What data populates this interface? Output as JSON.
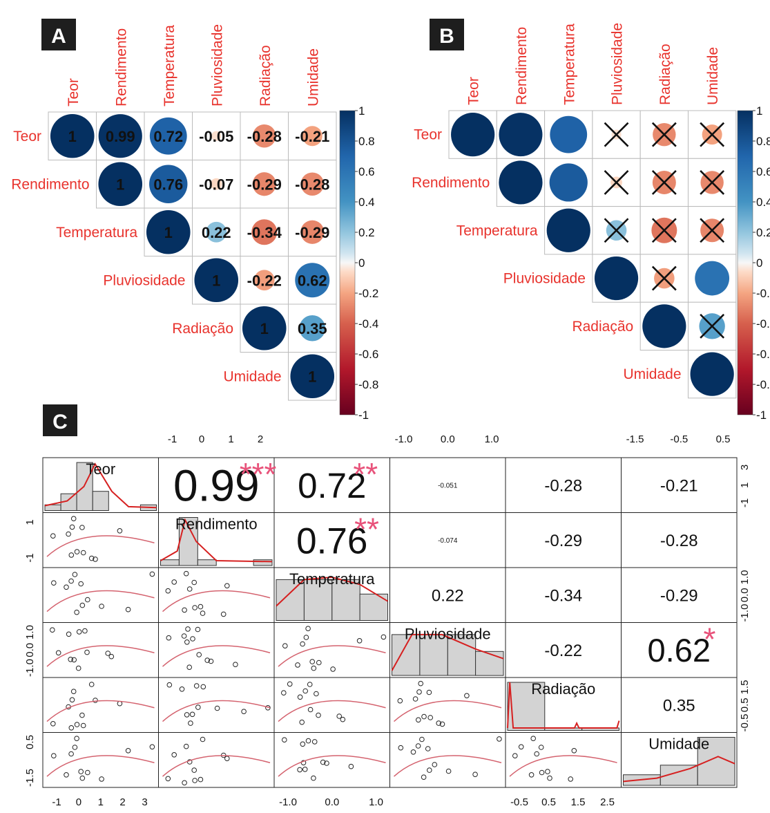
{
  "variables": [
    "Teor",
    "Rendimento",
    "Temperatura",
    "Pluviosidade",
    "Radiação",
    "Umidade"
  ],
  "panel_labels": {
    "a": "A",
    "b": "B",
    "c": "C"
  },
  "colorbar_ticks": [
    "1",
    "0.8",
    "0.6",
    "0.4",
    "0.2",
    "0",
    "-0.2",
    "-0.4",
    "-0.6",
    "-0.8",
    "-1"
  ],
  "colors": {
    "pos": "#0b3d7a",
    "neg": "#67001f",
    "neutral": "#f7f7f7",
    "label": "#e8332d",
    "star": "#e8527a",
    "hist": "#d3d3d3",
    "fit": "#d33"
  },
  "chart_data": [
    {
      "type": "heatmap",
      "panel": "A",
      "style": "correlation-upper-circle-with-numbers",
      "variables": [
        "Teor",
        "Rendimento",
        "Temperatura",
        "Pluviosidade",
        "Radiação",
        "Umidade"
      ],
      "matrix": [
        [
          1,
          0.99,
          0.72,
          -0.05,
          -0.28,
          -0.21
        ],
        [
          null,
          1,
          0.76,
          -0.07,
          -0.29,
          -0.28
        ],
        [
          null,
          null,
          1,
          0.22,
          -0.34,
          -0.29
        ],
        [
          null,
          null,
          null,
          1,
          -0.22,
          0.62
        ],
        [
          null,
          null,
          null,
          null,
          1,
          0.35
        ],
        [
          null,
          null,
          null,
          null,
          null,
          1
        ]
      ],
      "labels": [
        [
          "1",
          "0.99",
          "0.72",
          "-0.05",
          "-0.28",
          "-0.21"
        ],
        [
          null,
          "1",
          "0.76",
          "-0.07",
          "-0.29",
          "-0.28"
        ],
        [
          null,
          null,
          "1",
          "0.22",
          "-0.34",
          "-0.29"
        ],
        [
          null,
          null,
          null,
          "1",
          "-0.22",
          "0.62"
        ],
        [
          null,
          null,
          null,
          null,
          "1",
          "0.35"
        ],
        [
          null,
          null,
          null,
          null,
          null,
          "1"
        ]
      ],
      "colorbar_range": [
        -1,
        1
      ]
    },
    {
      "type": "heatmap",
      "panel": "B",
      "style": "correlation-upper-circle-with-nonsignificant-crossed",
      "variables": [
        "Teor",
        "Rendimento",
        "Temperatura",
        "Pluviosidade",
        "Radiação",
        "Umidade"
      ],
      "matrix": [
        [
          1,
          0.99,
          0.72,
          -0.05,
          -0.28,
          -0.21
        ],
        [
          null,
          1,
          0.76,
          -0.07,
          -0.29,
          -0.28
        ],
        [
          null,
          null,
          1,
          0.22,
          -0.34,
          -0.29
        ],
        [
          null,
          null,
          null,
          1,
          -0.22,
          0.62
        ],
        [
          null,
          null,
          null,
          null,
          1,
          0.35
        ],
        [
          null,
          null,
          null,
          null,
          null,
          1
        ]
      ],
      "nonsignificant": [
        [
          false,
          false,
          false,
          true,
          true,
          true
        ],
        [
          null,
          false,
          false,
          true,
          true,
          true
        ],
        [
          null,
          null,
          false,
          true,
          true,
          true
        ],
        [
          null,
          null,
          null,
          false,
          true,
          false
        ],
        [
          null,
          null,
          null,
          null,
          false,
          true
        ],
        [
          null,
          null,
          null,
          null,
          null,
          false
        ]
      ],
      "colorbar_range": [
        -1,
        1
      ]
    },
    {
      "type": "scatter",
      "panel": "C",
      "style": "scatterplot-matrix",
      "variables": [
        "Teor",
        "Rendimento",
        "Temperatura",
        "Pluviosidade",
        "Radiação",
        "Umidade"
      ],
      "upper_correlations": [
        {
          "row": 0,
          "col": 1,
          "text": "0.99",
          "stars": "***"
        },
        {
          "row": 0,
          "col": 2,
          "text": "0.72",
          "stars": "**"
        },
        {
          "row": 0,
          "col": 3,
          "text": "-0.051",
          "stars": ""
        },
        {
          "row": 0,
          "col": 4,
          "text": "-0.28",
          "stars": ""
        },
        {
          "row": 0,
          "col": 5,
          "text": "-0.21",
          "stars": ""
        },
        {
          "row": 1,
          "col": 2,
          "text": "0.76",
          "stars": "**"
        },
        {
          "row": 1,
          "col": 3,
          "text": "-0.074",
          "stars": ""
        },
        {
          "row": 1,
          "col": 4,
          "text": "-0.29",
          "stars": ""
        },
        {
          "row": 1,
          "col": 5,
          "text": "-0.28",
          "stars": ""
        },
        {
          "row": 2,
          "col": 3,
          "text": "0.22",
          "stars": ""
        },
        {
          "row": 2,
          "col": 4,
          "text": "-0.34",
          "stars": ""
        },
        {
          "row": 2,
          "col": 5,
          "text": "-0.29",
          "stars": ""
        },
        {
          "row": 3,
          "col": 4,
          "text": "-0.22",
          "stars": ""
        },
        {
          "row": 3,
          "col": 5,
          "text": "0.62",
          "stars": "*"
        },
        {
          "row": 4,
          "col": 5,
          "text": "0.35",
          "stars": ""
        }
      ],
      "top_axis_ticks": {
        "1": [
          "-1",
          "0",
          "1",
          "2"
        ],
        "3": [
          "-1.0",
          "0.0",
          "1.0"
        ],
        "5": [
          "-1.5",
          "-0.5",
          "0.5"
        ]
      },
      "bottom_axis_ticks": {
        "0": [
          "-1",
          "0",
          "1",
          "2",
          "3"
        ],
        "2": [
          "-1.0",
          "0.0",
          "1.0"
        ],
        "4": [
          "-0.5",
          "0.5",
          "1.5",
          "2.5"
        ]
      },
      "left_axis_ticks": {
        "1": [
          "1",
          "-1"
        ],
        "3": [
          "1.0",
          "0.0",
          "-1.0"
        ],
        "5": [
          "0.5",
          "-1.5"
        ]
      },
      "right_axis_ticks": {
        "0": [
          "3",
          "1",
          "-1"
        ],
        "2": [
          "1.0",
          "0.0",
          "-1.0"
        ],
        "4": [
          "1.5",
          "0.5",
          "-0.5"
        ]
      },
      "histograms": [
        [
          0.12,
          0.35,
          1.0,
          0.4,
          0,
          0,
          0.12
        ],
        [
          0.12,
          1.0,
          0.12,
          0,
          0,
          0.12
        ],
        [
          0.85,
          0.85,
          0.85,
          0.55
        ],
        [
          0.85,
          0.85,
          0.85,
          0.5
        ],
        [
          1.0,
          0.05,
          0.05
        ],
        [
          0.22,
          0.42,
          1.0
        ]
      ]
    }
  ]
}
